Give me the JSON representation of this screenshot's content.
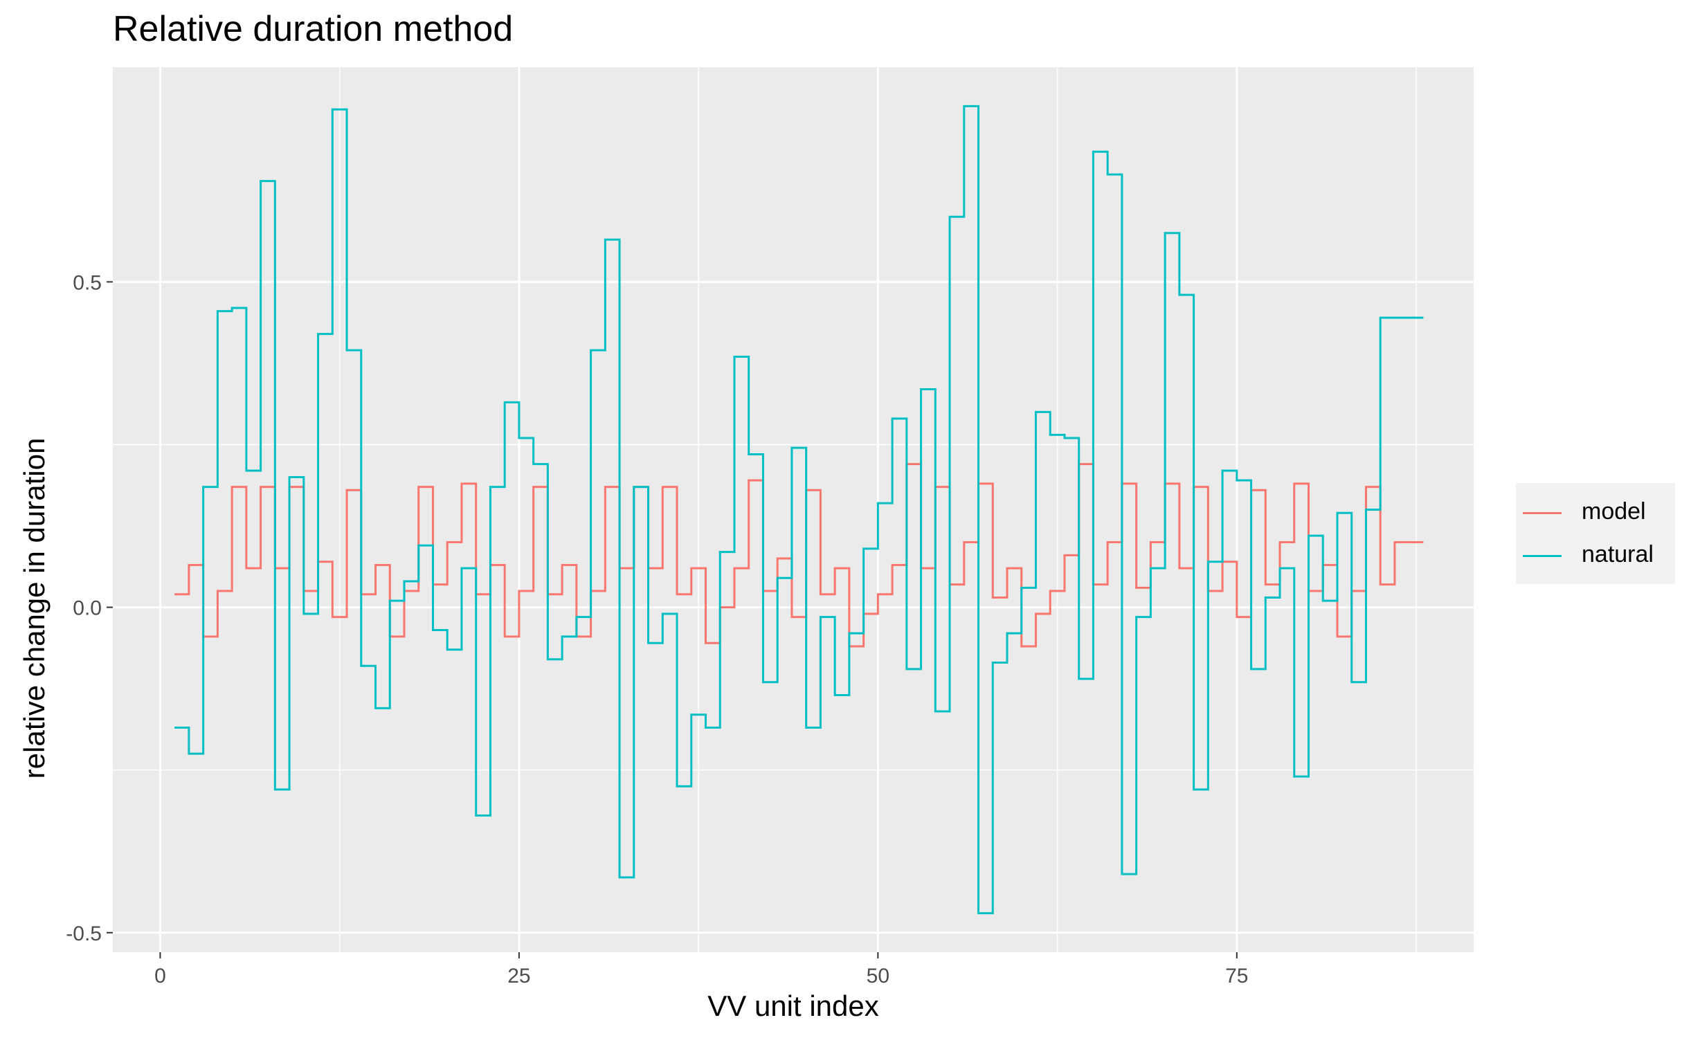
{
  "chart_data": {
    "type": "line",
    "title": "Relative duration method",
    "xlabel": "VV unit index",
    "ylabel": "relative change in duration",
    "xlim": [
      -3.3,
      91.5
    ],
    "ylim": [
      -0.53,
      0.83
    ],
    "x_ticks": [
      0,
      25,
      50,
      75
    ],
    "x_tick_labels": [
      "0",
      "25",
      "50",
      "75"
    ],
    "y_ticks": [
      -0.5,
      0.0,
      0.5
    ],
    "y_tick_labels": [
      "-0.5",
      "0.0",
      "0.5"
    ],
    "x_minor_ticks": [
      12.5,
      37.5,
      62.5,
      87.5
    ],
    "y_minor_ticks": [
      -0.25,
      0.25
    ],
    "grid": true,
    "step": "post",
    "legend": {
      "position": "right"
    },
    "series": [
      {
        "name": "model",
        "color": "#F8766D",
        "x": [
          1,
          2,
          3,
          4,
          5,
          6,
          7,
          8,
          9,
          10,
          11,
          12,
          13,
          14,
          15,
          16,
          17,
          18,
          19,
          20,
          21,
          22,
          23,
          24,
          25,
          26,
          27,
          28,
          29,
          30,
          31,
          32,
          33,
          34,
          35,
          36,
          37,
          38,
          39,
          40,
          41,
          42,
          43,
          44,
          45,
          46,
          47,
          48,
          49,
          50,
          51,
          52,
          53,
          54,
          55,
          56,
          57,
          58,
          59,
          60,
          61,
          62,
          63,
          64,
          65,
          66,
          67,
          68,
          69,
          70,
          71,
          72,
          73,
          74,
          75,
          76,
          77,
          78,
          79,
          80,
          81,
          82,
          83,
          84,
          85,
          86,
          87,
          88
        ],
        "y": [
          0.02,
          0.065,
          -0.045,
          0.025,
          0.185,
          0.06,
          0.185,
          0.06,
          0.185,
          0.025,
          0.07,
          -0.015,
          0.18,
          0.02,
          0.065,
          -0.045,
          0.025,
          0.185,
          0.035,
          0.1,
          0.19,
          0.02,
          0.065,
          -0.045,
          0.025,
          0.185,
          0.02,
          0.065,
          -0.045,
          0.025,
          0.185,
          0.06,
          0.185,
          0.06,
          0.185,
          0.02,
          0.06,
          -0.055,
          0.0,
          0.06,
          0.195,
          0.025,
          0.075,
          -0.015,
          0.18,
          0.02,
          0.06,
          -0.06,
          -0.01,
          0.02,
          0.065,
          0.22,
          0.06,
          0.185,
          0.035,
          0.1,
          0.19,
          0.015,
          0.06,
          -0.06,
          -0.01,
          0.025,
          0.08,
          0.22,
          0.035,
          0.1,
          0.19,
          0.03,
          0.1,
          0.19,
          0.06,
          0.185,
          0.025,
          0.07,
          -0.015,
          0.18,
          0.035,
          0.1,
          0.19,
          0.025,
          0.065,
          -0.045,
          0.025,
          0.185,
          0.035,
          0.1,
          0.1,
          0.1
        ]
      },
      {
        "name": "natural",
        "color": "#00BFC4",
        "x": [
          1,
          2,
          3,
          4,
          5,
          6,
          7,
          8,
          9,
          10,
          11,
          12,
          13,
          14,
          15,
          16,
          17,
          18,
          19,
          20,
          21,
          22,
          23,
          24,
          25,
          26,
          27,
          28,
          29,
          30,
          31,
          32,
          33,
          34,
          35,
          36,
          37,
          38,
          39,
          40,
          41,
          42,
          43,
          44,
          45,
          46,
          47,
          48,
          49,
          50,
          51,
          52,
          53,
          54,
          55,
          56,
          57,
          58,
          59,
          60,
          61,
          62,
          63,
          64,
          65,
          66,
          67,
          68,
          69,
          70,
          71,
          72,
          73,
          74,
          75,
          76,
          77,
          78,
          79,
          80,
          81,
          82,
          83,
          84,
          85,
          86,
          87,
          88
        ],
        "y": [
          -0.185,
          -0.225,
          0.185,
          0.455,
          0.46,
          0.21,
          0.655,
          -0.28,
          0.2,
          -0.01,
          0.42,
          0.765,
          0.395,
          -0.09,
          -0.155,
          0.01,
          0.04,
          0.095,
          -0.035,
          -0.065,
          0.06,
          -0.32,
          0.185,
          0.315,
          0.26,
          0.22,
          -0.08,
          -0.045,
          -0.015,
          0.395,
          0.565,
          -0.415,
          0.185,
          -0.055,
          -0.01,
          -0.275,
          -0.165,
          -0.185,
          0.085,
          0.385,
          0.235,
          -0.115,
          0.045,
          0.245,
          -0.185,
          -0.015,
          -0.135,
          -0.04,
          0.09,
          0.16,
          0.29,
          -0.095,
          0.335,
          -0.16,
          0.6,
          0.77,
          -0.47,
          -0.085,
          -0.04,
          0.03,
          0.3,
          0.265,
          0.26,
          -0.11,
          0.7,
          0.665,
          -0.41,
          -0.015,
          0.06,
          0.575,
          0.48,
          -0.28,
          0.07,
          0.21,
          0.195,
          -0.095,
          0.015,
          0.06,
          -0.26,
          0.11,
          0.01,
          0.145,
          -0.115,
          0.15,
          0.445,
          0.445,
          0.445,
          0.445
        ]
      }
    ]
  }
}
